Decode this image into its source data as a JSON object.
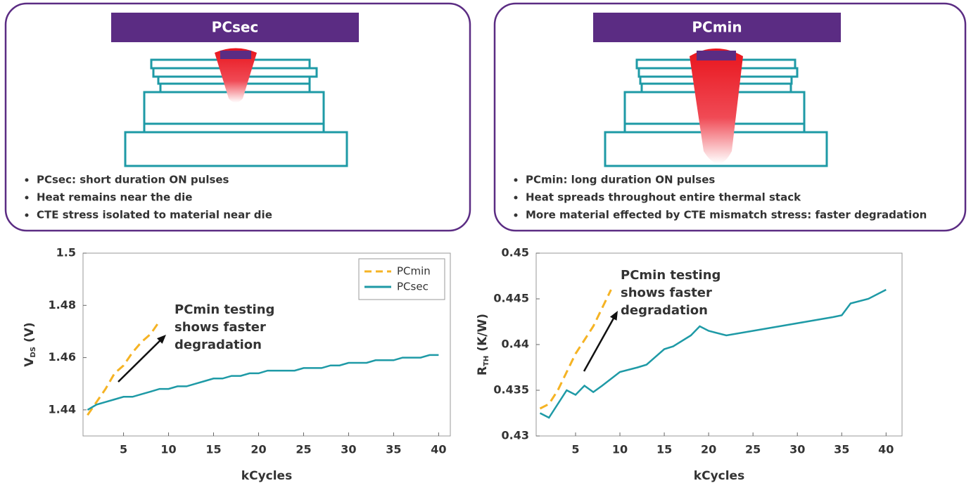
{
  "panels": [
    {
      "title": "PCsec",
      "bullets": [
        "PCsec: short duration ON pulses",
        "Heat remains near the die",
        "CTE stress isolated to material near die"
      ]
    },
    {
      "title": "PCmin",
      "bullets": [
        "PCmin: long duration ON pulses",
        "Heat spreads throughout entire thermal stack",
        "More material effected by CTE mismatch stress: faster degradation"
      ]
    }
  ],
  "chart_data": [
    {
      "type": "line",
      "xlabel": "kCycles",
      "ylabel": {
        "main": "V",
        "sub": "DS",
        "unit": "(V)"
      },
      "annotation": [
        "PCmin testing",
        "shows faster",
        "degradation"
      ],
      "legend": "upper right",
      "xlim": [
        0.5,
        41.3
      ],
      "ylim": [
        1.43,
        1.5
      ],
      "xticks": [
        5,
        10,
        15,
        20,
        25,
        30,
        35,
        40
      ],
      "yticks": [
        1.44,
        1.46,
        1.48,
        1.5
      ],
      "series": [
        {
          "name": "PCmin",
          "color": "#f5b324",
          "dashed": true,
          "x": [
            1,
            2,
            3,
            4,
            5,
            6,
            7,
            8,
            9
          ],
          "values": [
            1.438,
            1.443,
            1.448,
            1.454,
            1.457,
            1.462,
            1.466,
            1.469,
            1.474
          ]
        },
        {
          "name": "PCsec",
          "color": "#1e9aa6",
          "dashed": false,
          "x": [
            1,
            2,
            3,
            4,
            5,
            6,
            7,
            8,
            9,
            10,
            11,
            12,
            13,
            14,
            15,
            16,
            17,
            18,
            19,
            20,
            21,
            22,
            23,
            24,
            25,
            26,
            27,
            28,
            29,
            30,
            31,
            32,
            33,
            34,
            35,
            36,
            37,
            38,
            39,
            40
          ],
          "values": [
            1.44,
            1.442,
            1.443,
            1.444,
            1.445,
            1.445,
            1.446,
            1.447,
            1.448,
            1.448,
            1.449,
            1.449,
            1.45,
            1.451,
            1.452,
            1.452,
            1.453,
            1.453,
            1.454,
            1.454,
            1.455,
            1.455,
            1.455,
            1.455,
            1.456,
            1.456,
            1.456,
            1.457,
            1.457,
            1.458,
            1.458,
            1.458,
            1.459,
            1.459,
            1.459,
            1.46,
            1.46,
            1.46,
            1.461,
            1.461
          ]
        }
      ]
    },
    {
      "type": "line",
      "xlabel": "kCycles",
      "ylabel": {
        "main": "R",
        "sub": "TH",
        "unit": "(K/W)"
      },
      "annotation": [
        "PCmin testing",
        "shows faster",
        "degradation"
      ],
      "xlim": [
        0.56,
        41.8
      ],
      "ylim": [
        0.43,
        0.45
      ],
      "xticks": [
        5,
        10,
        15,
        20,
        25,
        30,
        35,
        40
      ],
      "yticks": [
        0.43,
        0.435,
        0.44,
        0.445,
        0.45
      ],
      "series": [
        {
          "name": "PCmin",
          "color": "#f5b324",
          "dashed": true,
          "x": [
            1,
            2,
            3,
            4,
            5,
            6,
            7,
            8,
            9
          ],
          "values": [
            0.433,
            0.4335,
            0.435,
            0.437,
            0.439,
            0.4405,
            0.442,
            0.444,
            0.446
          ]
        },
        {
          "name": "PCsec",
          "color": "#1e9aa6",
          "dashed": false,
          "x": [
            1,
            2,
            3,
            4,
            5,
            6,
            7,
            8,
            10,
            12,
            13,
            15,
            16,
            18,
            19,
            20,
            22,
            25,
            28,
            31,
            34,
            35,
            36,
            38,
            40
          ],
          "values": [
            0.4325,
            0.432,
            0.4335,
            0.435,
            0.4345,
            0.4355,
            0.4348,
            0.4355,
            0.437,
            0.4375,
            0.4378,
            0.4395,
            0.4398,
            0.441,
            0.442,
            0.4415,
            0.441,
            0.4415,
            0.442,
            0.4425,
            0.443,
            0.4432,
            0.4445,
            0.445,
            0.446
          ]
        }
      ]
    }
  ]
}
